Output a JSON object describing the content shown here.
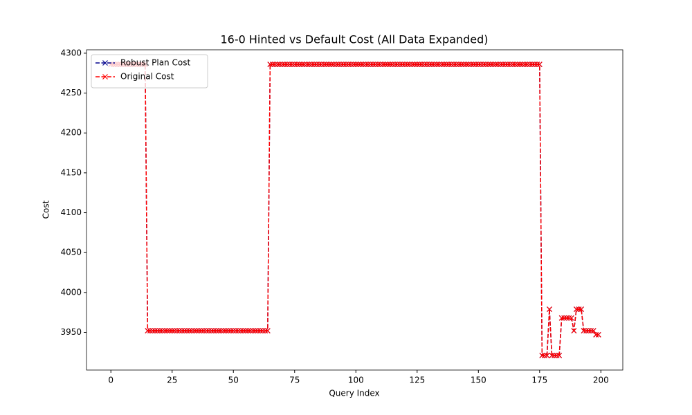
{
  "chart_data": {
    "type": "line",
    "title": "16-0 Hinted vs Default Cost (All Data Expanded)",
    "x_label": "Query Index",
    "y_label": "Cost",
    "x": [
      0,
      1,
      2,
      3,
      4,
      5,
      6,
      7,
      8,
      9,
      10,
      11,
      12,
      13,
      14,
      15,
      16,
      17,
      18,
      19,
      20,
      21,
      22,
      23,
      24,
      25,
      26,
      27,
      28,
      29,
      30,
      31,
      32,
      33,
      34,
      35,
      36,
      37,
      38,
      39,
      40,
      41,
      42,
      43,
      44,
      45,
      46,
      47,
      48,
      49,
      50,
      51,
      52,
      53,
      54,
      55,
      56,
      57,
      58,
      59,
      60,
      61,
      62,
      63,
      64,
      65,
      66,
      67,
      68,
      69,
      70,
      71,
      72,
      73,
      74,
      75,
      76,
      77,
      78,
      79,
      80,
      81,
      82,
      83,
      84,
      85,
      86,
      87,
      88,
      89,
      90,
      91,
      92,
      93,
      94,
      95,
      96,
      97,
      98,
      99,
      100,
      101,
      102,
      103,
      104,
      105,
      106,
      107,
      108,
      109,
      110,
      111,
      112,
      113,
      114,
      115,
      116,
      117,
      118,
      119,
      120,
      121,
      122,
      123,
      124,
      125,
      126,
      127,
      128,
      129,
      130,
      131,
      132,
      133,
      134,
      135,
      136,
      137,
      138,
      139,
      140,
      141,
      142,
      143,
      144,
      145,
      146,
      147,
      148,
      149,
      150,
      151,
      152,
      153,
      154,
      155,
      156,
      157,
      158,
      159,
      160,
      161,
      162,
      163,
      164,
      165,
      166,
      167,
      168,
      169,
      170,
      171,
      172,
      173,
      174,
      175,
      176,
      177,
      178,
      179,
      180,
      181,
      182,
      183,
      184,
      185,
      186,
      187,
      188,
      189,
      190,
      191,
      192,
      193,
      194,
      195,
      196,
      197,
      198,
      199
    ],
    "series": [
      {
        "name": "Robust Plan Cost",
        "color": "#00008b",
        "values": [
          4286,
          4286,
          4286,
          4286,
          4286,
          4286,
          4286,
          4286,
          4286,
          4286,
          4286,
          4286,
          4286,
          4286,
          4286,
          3952,
          3952,
          3952,
          3952,
          3952,
          3952,
          3952,
          3952,
          3952,
          3952,
          3952,
          3952,
          3952,
          3952,
          3952,
          3952,
          3952,
          3952,
          3952,
          3952,
          3952,
          3952,
          3952,
          3952,
          3952,
          3952,
          3952,
          3952,
          3952,
          3952,
          3952,
          3952,
          3952,
          3952,
          3952,
          3952,
          3952,
          3952,
          3952,
          3952,
          3952,
          3952,
          3952,
          3952,
          3952,
          3952,
          3952,
          3952,
          3952,
          3952,
          4286,
          4286,
          4286,
          4286,
          4286,
          4286,
          4286,
          4286,
          4286,
          4286,
          4286,
          4286,
          4286,
          4286,
          4286,
          4286,
          4286,
          4286,
          4286,
          4286,
          4286,
          4286,
          4286,
          4286,
          4286,
          4286,
          4286,
          4286,
          4286,
          4286,
          4286,
          4286,
          4286,
          4286,
          4286,
          4286,
          4286,
          4286,
          4286,
          4286,
          4286,
          4286,
          4286,
          4286,
          4286,
          4286,
          4286,
          4286,
          4286,
          4286,
          4286,
          4286,
          4286,
          4286,
          4286,
          4286,
          4286,
          4286,
          4286,
          4286,
          4286,
          4286,
          4286,
          4286,
          4286,
          4286,
          4286,
          4286,
          4286,
          4286,
          4286,
          4286,
          4286,
          4286,
          4286,
          4286,
          4286,
          4286,
          4286,
          4286,
          4286,
          4286,
          4286,
          4286,
          4286,
          4286,
          4286,
          4286,
          4286,
          4286,
          4286,
          4286,
          4286,
          4286,
          4286,
          4286,
          4286,
          4286,
          4286,
          4286,
          4286,
          4286,
          4286,
          4286,
          4286,
          4286,
          4286,
          4286,
          4286,
          4286,
          4286,
          3921,
          3921,
          3921,
          3979,
          3921,
          3921,
          3921,
          3921,
          3968,
          3968,
          3968,
          3968,
          3968,
          3952,
          3979,
          3979,
          3979,
          3952,
          3952,
          3952,
          3952,
          3952,
          3947,
          3947
        ]
      },
      {
        "name": "Original Cost",
        "color": "#ff0000",
        "values": [
          4286,
          4286,
          4286,
          4286,
          4286,
          4286,
          4286,
          4286,
          4286,
          4286,
          4286,
          4286,
          4286,
          4286,
          4286,
          3952,
          3952,
          3952,
          3952,
          3952,
          3952,
          3952,
          3952,
          3952,
          3952,
          3952,
          3952,
          3952,
          3952,
          3952,
          3952,
          3952,
          3952,
          3952,
          3952,
          3952,
          3952,
          3952,
          3952,
          3952,
          3952,
          3952,
          3952,
          3952,
          3952,
          3952,
          3952,
          3952,
          3952,
          3952,
          3952,
          3952,
          3952,
          3952,
          3952,
          3952,
          3952,
          3952,
          3952,
          3952,
          3952,
          3952,
          3952,
          3952,
          3952,
          4286,
          4286,
          4286,
          4286,
          4286,
          4286,
          4286,
          4286,
          4286,
          4286,
          4286,
          4286,
          4286,
          4286,
          4286,
          4286,
          4286,
          4286,
          4286,
          4286,
          4286,
          4286,
          4286,
          4286,
          4286,
          4286,
          4286,
          4286,
          4286,
          4286,
          4286,
          4286,
          4286,
          4286,
          4286,
          4286,
          4286,
          4286,
          4286,
          4286,
          4286,
          4286,
          4286,
          4286,
          4286,
          4286,
          4286,
          4286,
          4286,
          4286,
          4286,
          4286,
          4286,
          4286,
          4286,
          4286,
          4286,
          4286,
          4286,
          4286,
          4286,
          4286,
          4286,
          4286,
          4286,
          4286,
          4286,
          4286,
          4286,
          4286,
          4286,
          4286,
          4286,
          4286,
          4286,
          4286,
          4286,
          4286,
          4286,
          4286,
          4286,
          4286,
          4286,
          4286,
          4286,
          4286,
          4286,
          4286,
          4286,
          4286,
          4286,
          4286,
          4286,
          4286,
          4286,
          4286,
          4286,
          4286,
          4286,
          4286,
          4286,
          4286,
          4286,
          4286,
          4286,
          4286,
          4286,
          4286,
          4286,
          4286,
          4286,
          3921,
          3921,
          3921,
          3979,
          3921,
          3921,
          3921,
          3921,
          3968,
          3968,
          3968,
          3968,
          3968,
          3952,
          3979,
          3979,
          3979,
          3952,
          3952,
          3952,
          3952,
          3952,
          3947,
          3947
        ]
      }
    ],
    "xlim": [
      -9.95,
      208.95
    ],
    "ylim": [
      3902.75,
      4304.25
    ],
    "xticks": [
      0,
      25,
      50,
      75,
      100,
      125,
      150,
      175,
      200
    ],
    "yticks": [
      3950,
      4000,
      4050,
      4100,
      4150,
      4200,
      4250,
      4300
    ],
    "legend": "upper left",
    "line_style": "dashed",
    "marker": "x"
  }
}
